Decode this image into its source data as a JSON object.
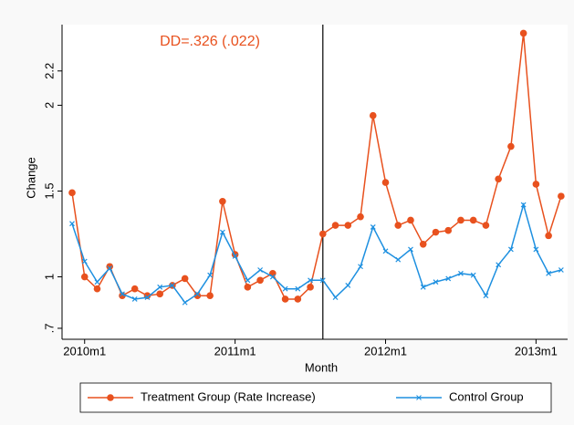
{
  "chart_data": {
    "type": "line",
    "annotation": "DD=.326 (.022)",
    "annotation_color": "#e8511e",
    "x_label": "Month",
    "y_label": "Change",
    "categories": [
      null,
      "2010m1",
      null,
      null,
      null,
      null,
      null,
      null,
      null,
      null,
      null,
      null,
      null,
      "2011m1",
      null,
      null,
      null,
      null,
      null,
      null,
      null,
      null,
      null,
      null,
      null,
      "2012m1",
      null,
      null,
      null,
      null,
      null,
      null,
      null,
      null,
      null,
      null,
      null,
      "2013m1",
      null,
      null
    ],
    "event_line_index": 20,
    "ylim": [
      0.636,
      2.47
    ],
    "yticks": [
      {
        "value": 0.7,
        "label": ".7"
      },
      1,
      1.5,
      2,
      2.2
    ],
    "legend": "bottom",
    "series": [
      {
        "name": "Treatment Group (Rate Increase)",
        "color": "#e8511e",
        "marker": "circle",
        "values": [
          1.49,
          1.0,
          0.93,
          1.06,
          0.89,
          0.93,
          0.89,
          0.9,
          0.95,
          0.99,
          0.89,
          0.89,
          1.44,
          1.13,
          0.94,
          0.98,
          1.02,
          0.87,
          0.87,
          0.94,
          1.25,
          1.3,
          1.3,
          1.35,
          1.94,
          1.55,
          1.3,
          1.33,
          1.19,
          1.26,
          1.27,
          1.33,
          1.33,
          1.3,
          1.57,
          1.76,
          2.42,
          1.54,
          1.24,
          1.47
        ]
      },
      {
        "name": "Control Group",
        "color": "#1e90e0",
        "marker": "x",
        "values": [
          1.31,
          1.09,
          0.97,
          1.05,
          0.9,
          0.87,
          0.88,
          0.94,
          0.95,
          0.85,
          0.9,
          1.01,
          1.26,
          1.12,
          0.98,
          1.04,
          1.0,
          0.93,
          0.93,
          0.98,
          0.98,
          0.88,
          0.95,
          1.06,
          1.29,
          1.15,
          1.1,
          1.16,
          0.94,
          0.97,
          0.99,
          1.02,
          1.01,
          0.89,
          1.07,
          1.16,
          1.42,
          1.16,
          1.02,
          1.04
        ]
      }
    ]
  }
}
